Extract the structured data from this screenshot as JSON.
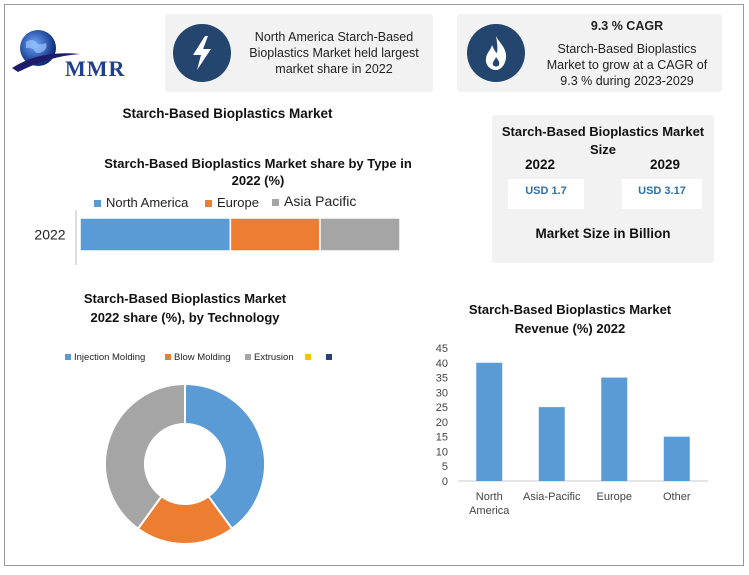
{
  "brand": {
    "logo_text": "MMR"
  },
  "info_card_1": {
    "text": "North America Starch-Based Bioplastics Market held largest market share in 2022",
    "icon": "lightning-icon"
  },
  "info_card_2": {
    "title": "9.3 % CAGR",
    "text": "Starch-Based Bioplastics Market to grow at a CAGR of 9.3 % during 2023-2029",
    "icon": "flame-icon"
  },
  "main_title": "Starch-Based Bioplastics Market",
  "market_size_card": {
    "title": "Starch-Based Bioplastics Market Size",
    "year_1": "2022",
    "value_1": "USD 1.7",
    "year_2": "2029",
    "value_2": "USD 3.17",
    "footer": "Market Size in Billion"
  },
  "colors": {
    "blue": "#5b9bd5",
    "orange": "#ed7d31",
    "gray": "#a5a5a5",
    "yellow": "#ffc000",
    "navy": "#264478",
    "icon_bg": "#24456e"
  },
  "chart_data": [
    {
      "type": "bar",
      "orientation": "horizontal-stacked",
      "title": "Starch-Based Bioplastics Market share by Type in 2022 (%)",
      "categories": [
        "2022"
      ],
      "series": [
        {
          "name": "North America",
          "values": [
            47
          ]
        },
        {
          "name": "Europe",
          "values": [
            28
          ]
        },
        {
          "name": "Asia Pacific",
          "values": [
            25
          ]
        }
      ],
      "legend": "top"
    },
    {
      "type": "pie",
      "style": "donut",
      "title": "Starch-Based Bioplastics Market 2022 share (%), by Technology",
      "labels": [
        "Injection Molding",
        "Blow Molding",
        "Extrusion",
        "",
        ""
      ],
      "values": [
        40,
        20,
        40,
        0,
        0
      ],
      "legend": "top"
    },
    {
      "type": "bar",
      "title": "Starch-Based Bioplastics Market Revenue (%) 2022",
      "categories": [
        "North America",
        "Asia-Pacific",
        "Europe",
        "Other"
      ],
      "values": [
        40,
        25,
        35,
        15
      ],
      "ylim": [
        0,
        45
      ],
      "yticks": [
        "0",
        "5",
        "10",
        "15",
        "20",
        "25",
        "30",
        "35",
        "40",
        "45"
      ],
      "grid": false
    }
  ]
}
